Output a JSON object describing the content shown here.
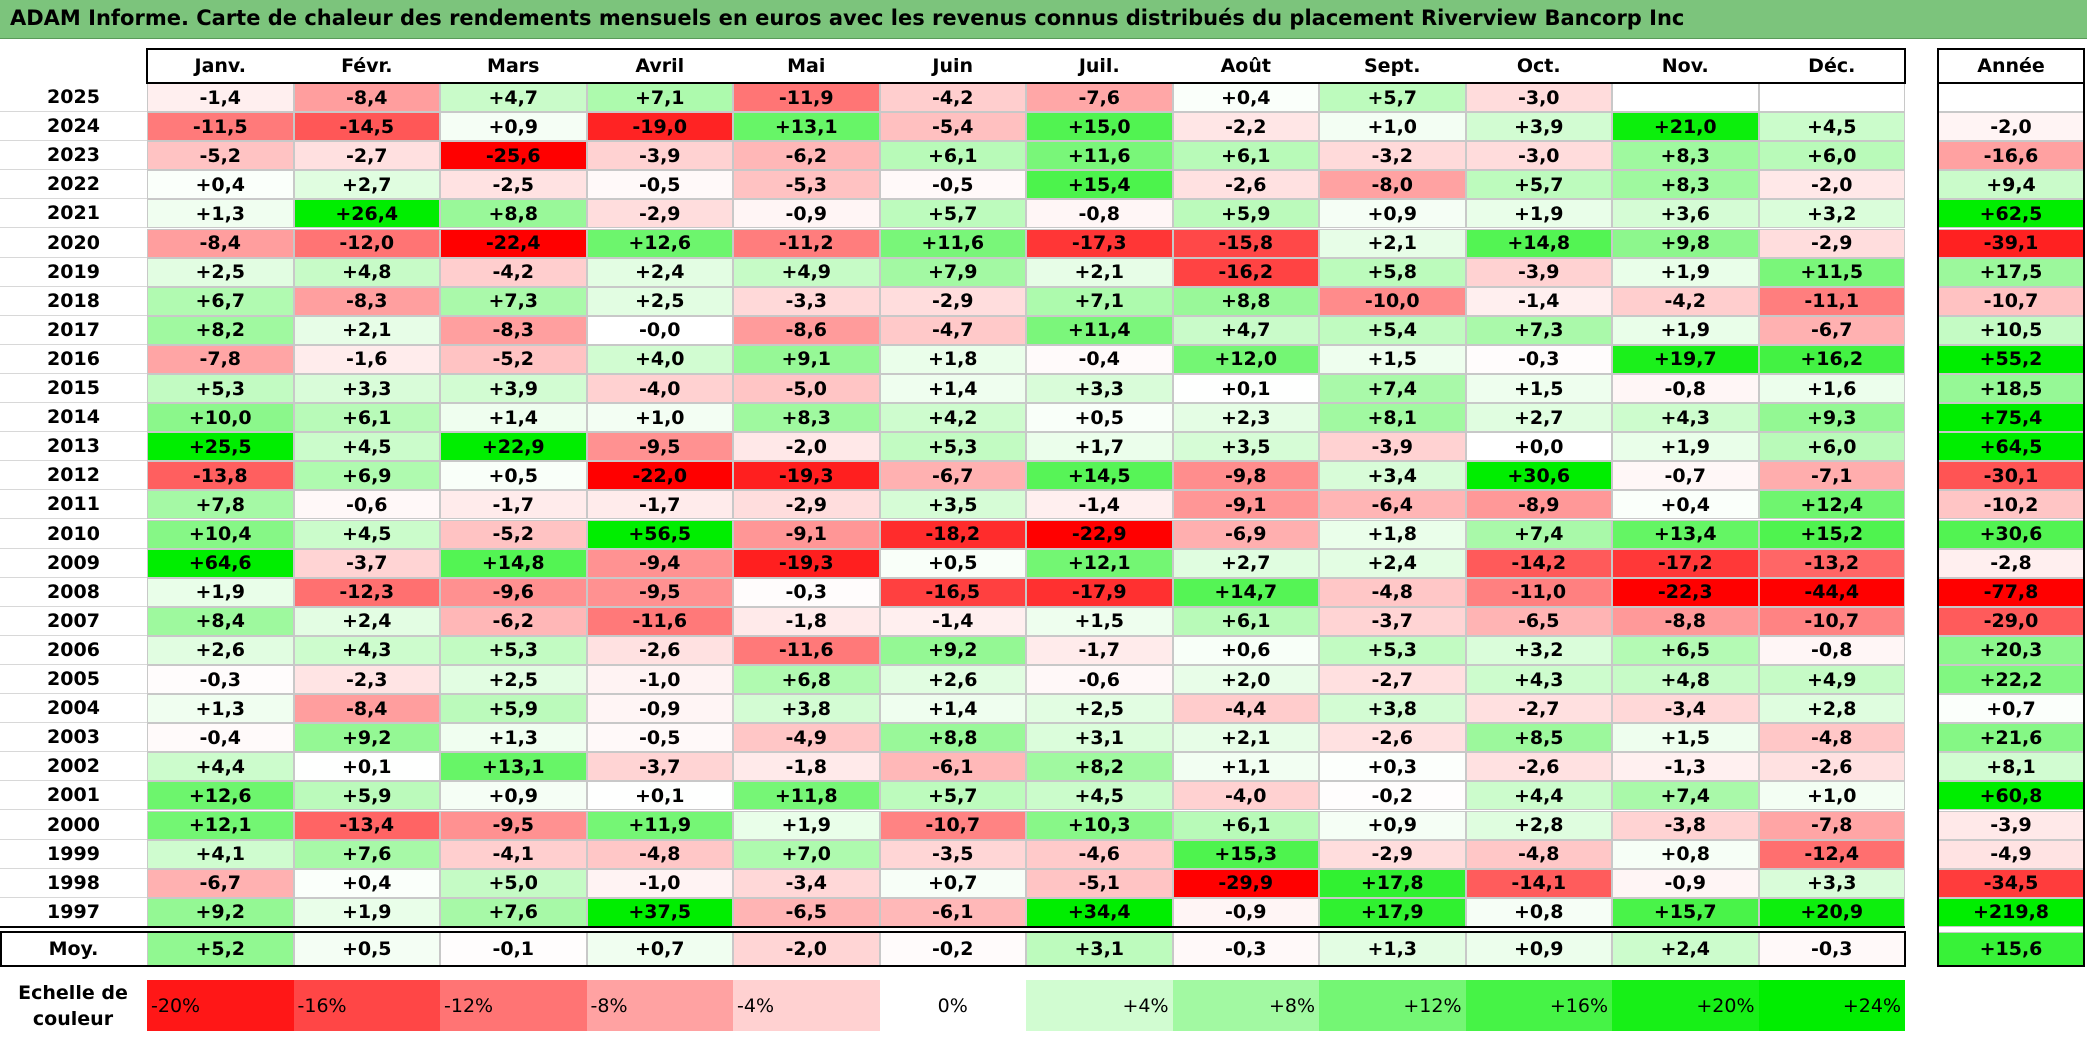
{
  "title": "ADAM Informe. Carte de chaleur des rendements mensuels en euros avec les revenus connus distribués du placement Riverview Bancorp Inc",
  "colors": {
    "title_bg": "#7cc47c",
    "max_red": "#ff0000",
    "max_green": "#00ee00",
    "neutral": "#ffffff"
  },
  "chart_data": {
    "type": "heatmap",
    "title": "ADAM Informe. Carte de chaleur des rendements mensuels en euros avec les revenus connus distribués du placement Riverview Bancorp Inc",
    "months": [
      "Janv.",
      "Févr.",
      "Mars",
      "Avril",
      "Mai",
      "Juin",
      "Juil.",
      "Août",
      "Sept.",
      "Oct.",
      "Nov.",
      "Déc."
    ],
    "year_header": "Année",
    "rows": [
      {
        "year": "2025",
        "values": [
          "-1,4",
          "-8,4",
          "+4,7",
          "+7,1",
          "-11,9",
          "-4,2",
          "-7,6",
          "+0,4",
          "+5,7",
          "-3,0",
          "",
          ""
        ],
        "annual": ""
      },
      {
        "year": "2024",
        "values": [
          "-11,5",
          "-14,5",
          "+0,9",
          "-19,0",
          "+13,1",
          "-5,4",
          "+15,0",
          "-2,2",
          "+1,0",
          "+3,9",
          "+21,0",
          "+4,5"
        ],
        "annual": "-2,0"
      },
      {
        "year": "2023",
        "values": [
          "-5,2",
          "-2,7",
          "-25,6",
          "-3,9",
          "-6,2",
          "+6,1",
          "+11,6",
          "+6,1",
          "-3,2",
          "-3,0",
          "+8,3",
          "+6,0"
        ],
        "annual": "-16,6"
      },
      {
        "year": "2022",
        "values": [
          "+0,4",
          "+2,7",
          "-2,5",
          "-0,5",
          "-5,3",
          "-0,5",
          "+15,4",
          "-2,6",
          "-8,0",
          "+5,7",
          "+8,3",
          "-2,0"
        ],
        "annual": "+9,4"
      },
      {
        "year": "2021",
        "values": [
          "+1,3",
          "+26,4",
          "+8,8",
          "-2,9",
          "-0,9",
          "+5,7",
          "-0,8",
          "+5,9",
          "+0,9",
          "+1,9",
          "+3,6",
          "+3,2"
        ],
        "annual": "+62,5"
      },
      {
        "year": "2020",
        "values": [
          "-8,4",
          "-12,0",
          "-22,4",
          "+12,6",
          "-11,2",
          "+11,6",
          "-17,3",
          "-15,8",
          "+2,1",
          "+14,8",
          "+9,8",
          "-2,9"
        ],
        "annual": "-39,1"
      },
      {
        "year": "2019",
        "values": [
          "+2,5",
          "+4,8",
          "-4,2",
          "+2,4",
          "+4,9",
          "+7,9",
          "+2,1",
          "-16,2",
          "+5,8",
          "-3,9",
          "+1,9",
          "+11,5"
        ],
        "annual": "+17,5"
      },
      {
        "year": "2018",
        "values": [
          "+6,7",
          "-8,3",
          "+7,3",
          "+2,5",
          "-3,3",
          "-2,9",
          "+7,1",
          "+8,8",
          "-10,0",
          "-1,4",
          "-4,2",
          "-11,1"
        ],
        "annual": "-10,7"
      },
      {
        "year": "2017",
        "values": [
          "+8,2",
          "+2,1",
          "-8,3",
          "-0,0",
          "-8,6",
          "-4,7",
          "+11,4",
          "+4,7",
          "+5,4",
          "+7,3",
          "+1,9",
          "-6,7"
        ],
        "annual": "+10,5"
      },
      {
        "year": "2016",
        "values": [
          "-7,8",
          "-1,6",
          "-5,2",
          "+4,0",
          "+9,1",
          "+1,8",
          "-0,4",
          "+12,0",
          "+1,5",
          "-0,3",
          "+19,7",
          "+16,2"
        ],
        "annual": "+55,2"
      },
      {
        "year": "2015",
        "values": [
          "+5,3",
          "+3,3",
          "+3,9",
          "-4,0",
          "-5,0",
          "+1,4",
          "+3,3",
          "+0,1",
          "+7,4",
          "+1,5",
          "-0,8",
          "+1,6"
        ],
        "annual": "+18,5"
      },
      {
        "year": "2014",
        "values": [
          "+10,0",
          "+6,1",
          "+1,4",
          "+1,0",
          "+8,3",
          "+4,2",
          "+0,5",
          "+2,3",
          "+8,1",
          "+2,7",
          "+4,3",
          "+9,3"
        ],
        "annual": "+75,4"
      },
      {
        "year": "2013",
        "values": [
          "+25,5",
          "+4,5",
          "+22,9",
          "-9,5",
          "-2,0",
          "+5,3",
          "+1,7",
          "+3,5",
          "-3,9",
          "+0,0",
          "+1,9",
          "+6,0"
        ],
        "annual": "+64,5"
      },
      {
        "year": "2012",
        "values": [
          "-13,8",
          "+6,9",
          "+0,5",
          "-22,0",
          "-19,3",
          "-6,7",
          "+14,5",
          "-9,8",
          "+3,4",
          "+30,6",
          "-0,7",
          "-7,1"
        ],
        "annual": "-30,1"
      },
      {
        "year": "2011",
        "values": [
          "+7,8",
          "-0,6",
          "-1,7",
          "-1,7",
          "-2,9",
          "+3,5",
          "-1,4",
          "-9,1",
          "-6,4",
          "-8,9",
          "+0,4",
          "+12,4"
        ],
        "annual": "-10,2"
      },
      {
        "year": "2010",
        "values": [
          "+10,4",
          "+4,5",
          "-5,2",
          "+56,5",
          "-9,1",
          "-18,2",
          "-22,9",
          "-6,9",
          "+1,8",
          "+7,4",
          "+13,4",
          "+15,2"
        ],
        "annual": "+30,6"
      },
      {
        "year": "2009",
        "values": [
          "+64,6",
          "-3,7",
          "+14,8",
          "-9,4",
          "-19,3",
          "+0,5",
          "+12,1",
          "+2,7",
          "+2,4",
          "-14,2",
          "-17,2",
          "-13,2"
        ],
        "annual": "-2,8"
      },
      {
        "year": "2008",
        "values": [
          "+1,9",
          "-12,3",
          "-9,6",
          "-9,5",
          "-0,3",
          "-16,5",
          "-17,9",
          "+14,7",
          "-4,8",
          "-11,0",
          "-22,3",
          "-44,4"
        ],
        "annual": "-77,8"
      },
      {
        "year": "2007",
        "values": [
          "+8,4",
          "+2,4",
          "-6,2",
          "-11,6",
          "-1,8",
          "-1,4",
          "+1,5",
          "+6,1",
          "-3,7",
          "-6,5",
          "-8,8",
          "-10,7"
        ],
        "annual": "-29,0"
      },
      {
        "year": "2006",
        "values": [
          "+2,6",
          "+4,3",
          "+5,3",
          "-2,6",
          "-11,6",
          "+9,2",
          "-1,7",
          "+0,6",
          "+5,3",
          "+3,2",
          "+6,5",
          "-0,8"
        ],
        "annual": "+20,3"
      },
      {
        "year": "2005",
        "values": [
          "-0,3",
          "-2,3",
          "+2,5",
          "-1,0",
          "+6,8",
          "+2,6",
          "-0,6",
          "+2,0",
          "-2,7",
          "+4,3",
          "+4,8",
          "+4,9"
        ],
        "annual": "+22,2"
      },
      {
        "year": "2004",
        "values": [
          "+1,3",
          "-8,4",
          "+5,9",
          "-0,9",
          "+3,8",
          "+1,4",
          "+2,5",
          "-4,4",
          "+3,8",
          "-2,7",
          "-3,4",
          "+2,8"
        ],
        "annual": "+0,7"
      },
      {
        "year": "2003",
        "values": [
          "-0,4",
          "+9,2",
          "+1,3",
          "-0,5",
          "-4,9",
          "+8,8",
          "+3,1",
          "+2,1",
          "-2,6",
          "+8,5",
          "+1,5",
          "-4,8"
        ],
        "annual": "+21,6"
      },
      {
        "year": "2002",
        "values": [
          "+4,4",
          "+0,1",
          "+13,1",
          "-3,7",
          "-1,8",
          "-6,1",
          "+8,2",
          "+1,1",
          "+0,3",
          "-2,6",
          "-1,3",
          "-2,6"
        ],
        "annual": "+8,1"
      },
      {
        "year": "2001",
        "values": [
          "+12,6",
          "+5,9",
          "+0,9",
          "+0,1",
          "+11,8",
          "+5,7",
          "+4,5",
          "-4,0",
          "-0,2",
          "+4,4",
          "+7,4",
          "+1,0"
        ],
        "annual": "+60,8"
      },
      {
        "year": "2000",
        "values": [
          "+12,1",
          "-13,4",
          "-9,5",
          "+11,9",
          "+1,9",
          "-10,7",
          "+10,3",
          "+6,1",
          "+0,9",
          "+2,8",
          "-3,8",
          "-7,8"
        ],
        "annual": "-3,9"
      },
      {
        "year": "1999",
        "values": [
          "+4,1",
          "+7,6",
          "-4,1",
          "-4,8",
          "+7,0",
          "-3,5",
          "-4,6",
          "+15,3",
          "-2,9",
          "-4,8",
          "+0,8",
          "-12,4"
        ],
        "annual": "-4,9"
      },
      {
        "year": "1998",
        "values": [
          "-6,7",
          "+0,4",
          "+5,0",
          "-1,0",
          "-3,4",
          "+0,7",
          "-5,1",
          "-29,9",
          "+17,8",
          "-14,1",
          "-0,9",
          "+3,3"
        ],
        "annual": "-34,5"
      },
      {
        "year": "1997",
        "values": [
          "+9,2",
          "+1,9",
          "+7,6",
          "+37,5",
          "-6,5",
          "-6,1",
          "+34,4",
          "-0,9",
          "+17,9",
          "+0,8",
          "+15,7",
          "+20,9"
        ],
        "annual": "+219,8"
      }
    ],
    "average": {
      "label": "Moy.",
      "values": [
        "+5,2",
        "+0,5",
        "-0,1",
        "+0,7",
        "-2,0",
        "-0,2",
        "+3,1",
        "-0,3",
        "+1,3",
        "+0,9",
        "+2,4",
        "-0,3"
      ],
      "annual": "+15,6"
    },
    "scale": {
      "label": "Echelle de couleur",
      "items": [
        "-20%",
        "-16%",
        "-12%",
        "-8%",
        "-4%",
        "0%",
        "+4%",
        "+8%",
        "+12%",
        "+16%",
        "+20%",
        "+24%"
      ],
      "values": [
        -20,
        -16,
        -12,
        -8,
        -4,
        0,
        4,
        8,
        12,
        16,
        20,
        24
      ]
    }
  }
}
